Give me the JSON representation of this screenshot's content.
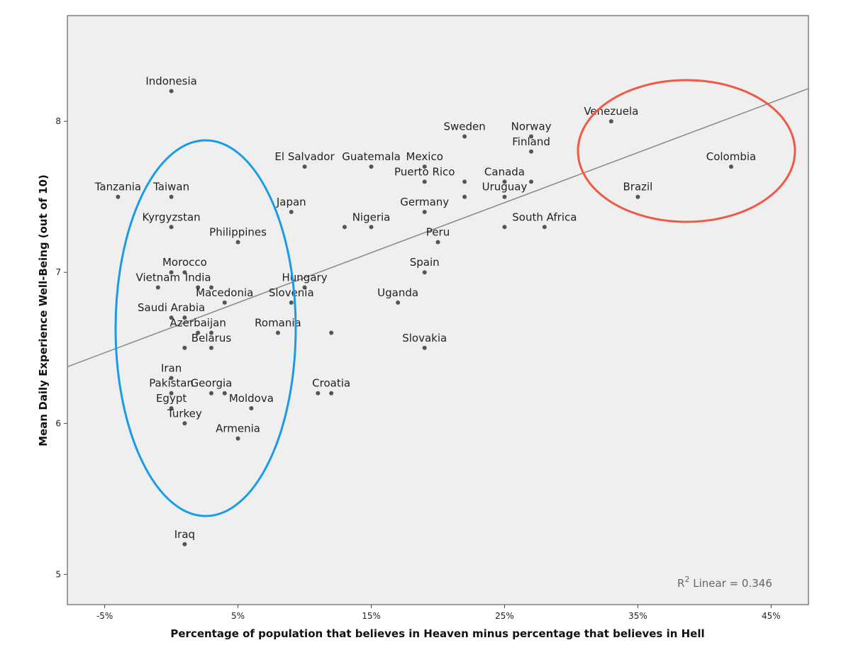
{
  "chart_data": {
    "type": "scatter",
    "xlabel": "Percentage of population that believes in Heaven minus percentage that believes in Hell",
    "ylabel": "Mean Daily Experience Well-Being (out of 10)",
    "xlim": [
      -7.8,
      47.8
    ],
    "ylim": [
      4.8,
      8.7
    ],
    "x_ticks": [
      -5,
      5,
      15,
      25,
      35,
      45
    ],
    "x_tick_labels": [
      "-5%",
      "5%",
      "15%",
      "25%",
      "35%",
      "45%"
    ],
    "y_ticks": [
      5,
      6,
      7,
      8
    ],
    "y_tick_labels": [
      "5",
      "6",
      "7",
      "8"
    ],
    "grid": false,
    "fit_line": {
      "type": "linear",
      "from": [
        -7.8,
        6.375
      ],
      "to": [
        47.8,
        8.217
      ]
    },
    "annotation": {
      "prefix": "R",
      "superscript": "2",
      "text": " Linear = 0.346"
    },
    "colors": {
      "background": "#efefef",
      "points": "#555555",
      "fit_line": "#888888",
      "left_ellipse": "#1a9be8",
      "right_ellipse": "#ee5a45"
    },
    "points": [
      {
        "label": "Indonesia",
        "x": 0,
        "y": 8.2
      },
      {
        "label": "Tanzania",
        "x": -4,
        "y": 7.5
      },
      {
        "label": "Taiwan",
        "x": 0,
        "y": 7.5
      },
      {
        "label": "Kyrgyzstan",
        "x": 0,
        "y": 7.3
      },
      {
        "label": "Philippines",
        "x": 5,
        "y": 7.2
      },
      {
        "label": "",
        "x": 0,
        "y": 7.0
      },
      {
        "label": "Morocco",
        "x": 1,
        "y": 7.0
      },
      {
        "label": "Vietnam",
        "x": -1,
        "y": 6.9
      },
      {
        "label": "India",
        "x": 2,
        "y": 6.9
      },
      {
        "label": "",
        "x": 3,
        "y": 6.9
      },
      {
        "label": "Macedonia",
        "x": 4,
        "y": 6.8
      },
      {
        "label": "Saudi Arabia",
        "x": 0,
        "y": 6.7
      },
      {
        "label": "",
        "x": 1,
        "y": 6.7
      },
      {
        "label": "Azerbaijan",
        "x": 2,
        "y": 6.6
      },
      {
        "label": "",
        "x": 3,
        "y": 6.6
      },
      {
        "label": "",
        "x": 1,
        "y": 6.5
      },
      {
        "label": "Belarus",
        "x": 3,
        "y": 6.5
      },
      {
        "label": "Iran",
        "x": 0,
        "y": 6.3
      },
      {
        "label": "Pakistan",
        "x": 0,
        "y": 6.2
      },
      {
        "label": "Georgia",
        "x": 3,
        "y": 6.2
      },
      {
        "label": "",
        "x": 4,
        "y": 6.2
      },
      {
        "label": "Egypt",
        "x": 0,
        "y": 6.1
      },
      {
        "label": "Moldova",
        "x": 6,
        "y": 6.1
      },
      {
        "label": "Turkey",
        "x": 1,
        "y": 6.0
      },
      {
        "label": "Armenia",
        "x": 5,
        "y": 5.9
      },
      {
        "label": "Iraq",
        "x": 1,
        "y": 5.2
      },
      {
        "label": "Japan",
        "x": 9,
        "y": 7.4
      },
      {
        "label": "El Salvador",
        "x": 10,
        "y": 7.7
      },
      {
        "label": "Guatemala",
        "x": 15,
        "y": 7.7
      },
      {
        "label": "Mexico",
        "x": 19,
        "y": 7.7
      },
      {
        "label": "Puerto Rico",
        "x": 19,
        "y": 7.6
      },
      {
        "label": "",
        "x": 22,
        "y": 7.6
      },
      {
        "label": "Sweden",
        "x": 22,
        "y": 7.9
      },
      {
        "label": "Norway",
        "x": 27,
        "y": 7.9
      },
      {
        "label": "Finland",
        "x": 27,
        "y": 7.8
      },
      {
        "label": "Canada",
        "x": 25,
        "y": 7.6
      },
      {
        "label": "",
        "x": 27,
        "y": 7.6
      },
      {
        "label": "Uruguay",
        "x": 25,
        "y": 7.5
      },
      {
        "label": "",
        "x": 22,
        "y": 7.5
      },
      {
        "label": "Germany",
        "x": 19,
        "y": 7.4
      },
      {
        "label": "Nigeria",
        "x": 15,
        "y": 7.3
      },
      {
        "label": "",
        "x": 13,
        "y": 7.3
      },
      {
        "label": "Peru",
        "x": 20,
        "y": 7.2
      },
      {
        "label": "",
        "x": 25,
        "y": 7.3
      },
      {
        "label": "South Africa",
        "x": 28,
        "y": 7.3
      },
      {
        "label": "Spain",
        "x": 19,
        "y": 7.0
      },
      {
        "label": "Hungary",
        "x": 10,
        "y": 6.9
      },
      {
        "label": "Slovenia",
        "x": 9,
        "y": 6.8
      },
      {
        "label": "Uganda",
        "x": 17,
        "y": 6.8
      },
      {
        "label": "Romania",
        "x": 8,
        "y": 6.6
      },
      {
        "label": "",
        "x": 12,
        "y": 6.6
      },
      {
        "label": "Slovakia",
        "x": 19,
        "y": 6.5
      },
      {
        "label": "Croatia",
        "x": 12,
        "y": 6.2
      },
      {
        "label": "",
        "x": 11,
        "y": 6.2
      },
      {
        "label": "Venezuela",
        "x": 33,
        "y": 8.0
      },
      {
        "label": "Colombia",
        "x": 42,
        "y": 7.7
      },
      {
        "label": "Brazil",
        "x": 35,
        "y": 7.5
      }
    ]
  }
}
